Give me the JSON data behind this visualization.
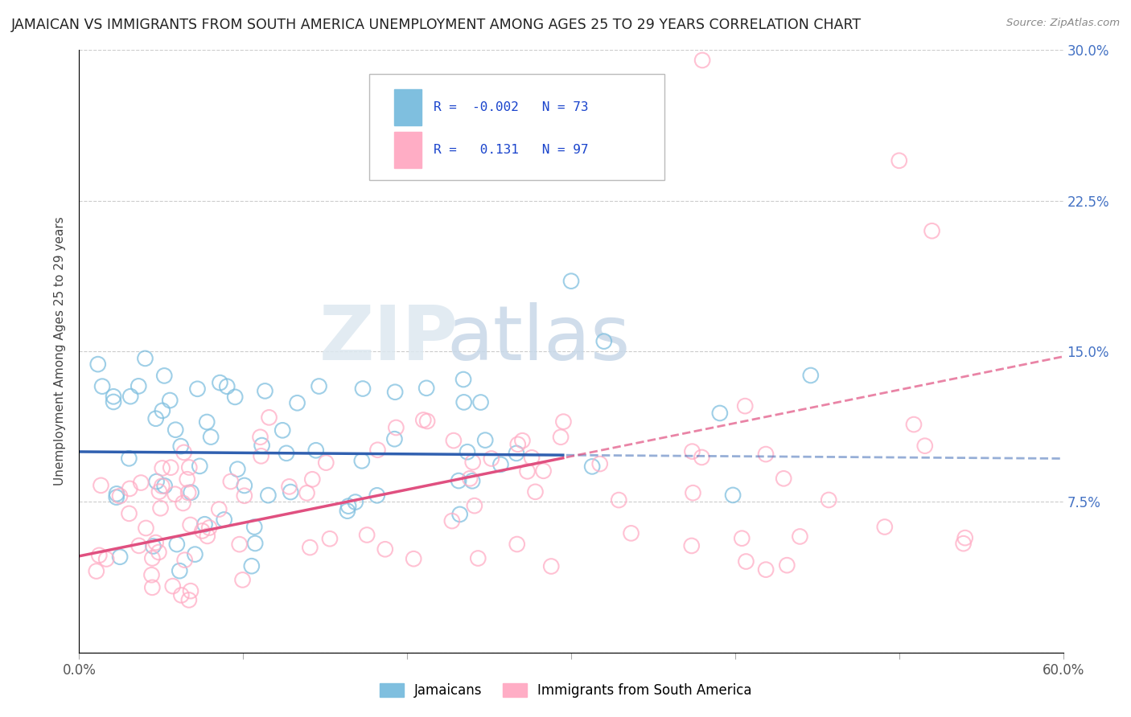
{
  "title": "JAMAICAN VS IMMIGRANTS FROM SOUTH AMERICA UNEMPLOYMENT AMONG AGES 25 TO 29 YEARS CORRELATION CHART",
  "source": "Source: ZipAtlas.com",
  "ylabel": "Unemployment Among Ages 25 to 29 years",
  "x_min": 0.0,
  "x_max": 0.6,
  "y_min": 0.0,
  "y_max": 0.3,
  "x_ticks": [
    0.0,
    0.1,
    0.2,
    0.3,
    0.4,
    0.5,
    0.6
  ],
  "x_tick_labels": [
    "0.0%",
    "",
    "",
    "",
    "",
    "",
    "60.0%"
  ],
  "y_ticks": [
    0.0,
    0.075,
    0.15,
    0.225,
    0.3
  ],
  "y_tick_labels_right": [
    "",
    "7.5%",
    "15.0%",
    "22.5%",
    "30.0%"
  ],
  "jamaicans_R": -0.002,
  "jamaicans_N": 73,
  "south_america_R": 0.131,
  "south_america_N": 97,
  "blue_color": "#7fbfdf",
  "pink_color": "#ffadc5",
  "blue_line_color": "#3060b0",
  "pink_line_color": "#e05080",
  "watermark_color": "#d8e8f0",
  "watermark_color2": "#c8d8e8",
  "legend_label_blue": "Jamaicans",
  "legend_label_pink": "Immigrants from South America"
}
